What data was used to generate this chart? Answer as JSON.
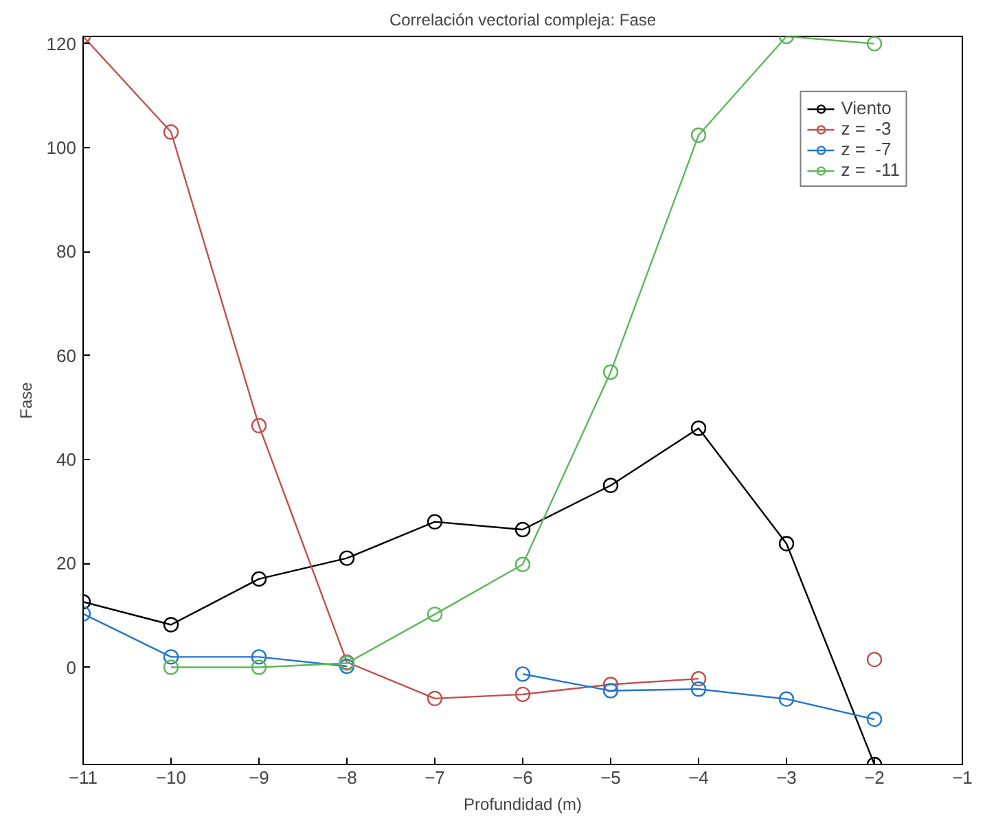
{
  "chart_data": {
    "type": "line",
    "title": "Correlación vectorial compleja: Fase",
    "xlabel": "Profundidad (m)",
    "ylabel": "Fase",
    "x": [
      -11,
      -10,
      -9,
      -8,
      -7,
      -6,
      -5,
      -4,
      -3,
      -2
    ],
    "xlim": [
      -11,
      -1
    ],
    "xticks": [
      -11,
      -10,
      -9,
      -8,
      -7,
      -6,
      -5,
      -4,
      -3,
      -2,
      -1
    ],
    "ylim": [
      -18.7,
      121.4
    ],
    "yticks": [
      0,
      20,
      40,
      60,
      80,
      100,
      120
    ],
    "grid": false,
    "legend": "top right",
    "marker": "circle",
    "line_style": "solid",
    "series": [
      {
        "name": "Viento",
        "color": "#000000",
        "values": [
          12.6,
          8.2,
          17,
          21,
          28,
          26.5,
          35,
          46,
          23.8,
          -18.7
        ]
      },
      {
        "name": "z =  -3",
        "color": "#c0504d",
        "values": [
          121.4,
          103,
          46.5,
          1,
          -6,
          -5.2,
          -3.3,
          -2.2,
          null,
          1.5
        ]
      },
      {
        "name": "z =  -7",
        "color": "#1f77d0",
        "values": [
          10.3,
          2,
          2,
          0.2,
          null,
          -1.3,
          -4.5,
          -4.2,
          -6.1,
          -10
        ]
      },
      {
        "name": "z =  -11",
        "color": "#5cb85c",
        "values": [
          null,
          0,
          0,
          0.8,
          10.2,
          19.8,
          56.8,
          102.4,
          121.4,
          120
        ]
      }
    ]
  }
}
